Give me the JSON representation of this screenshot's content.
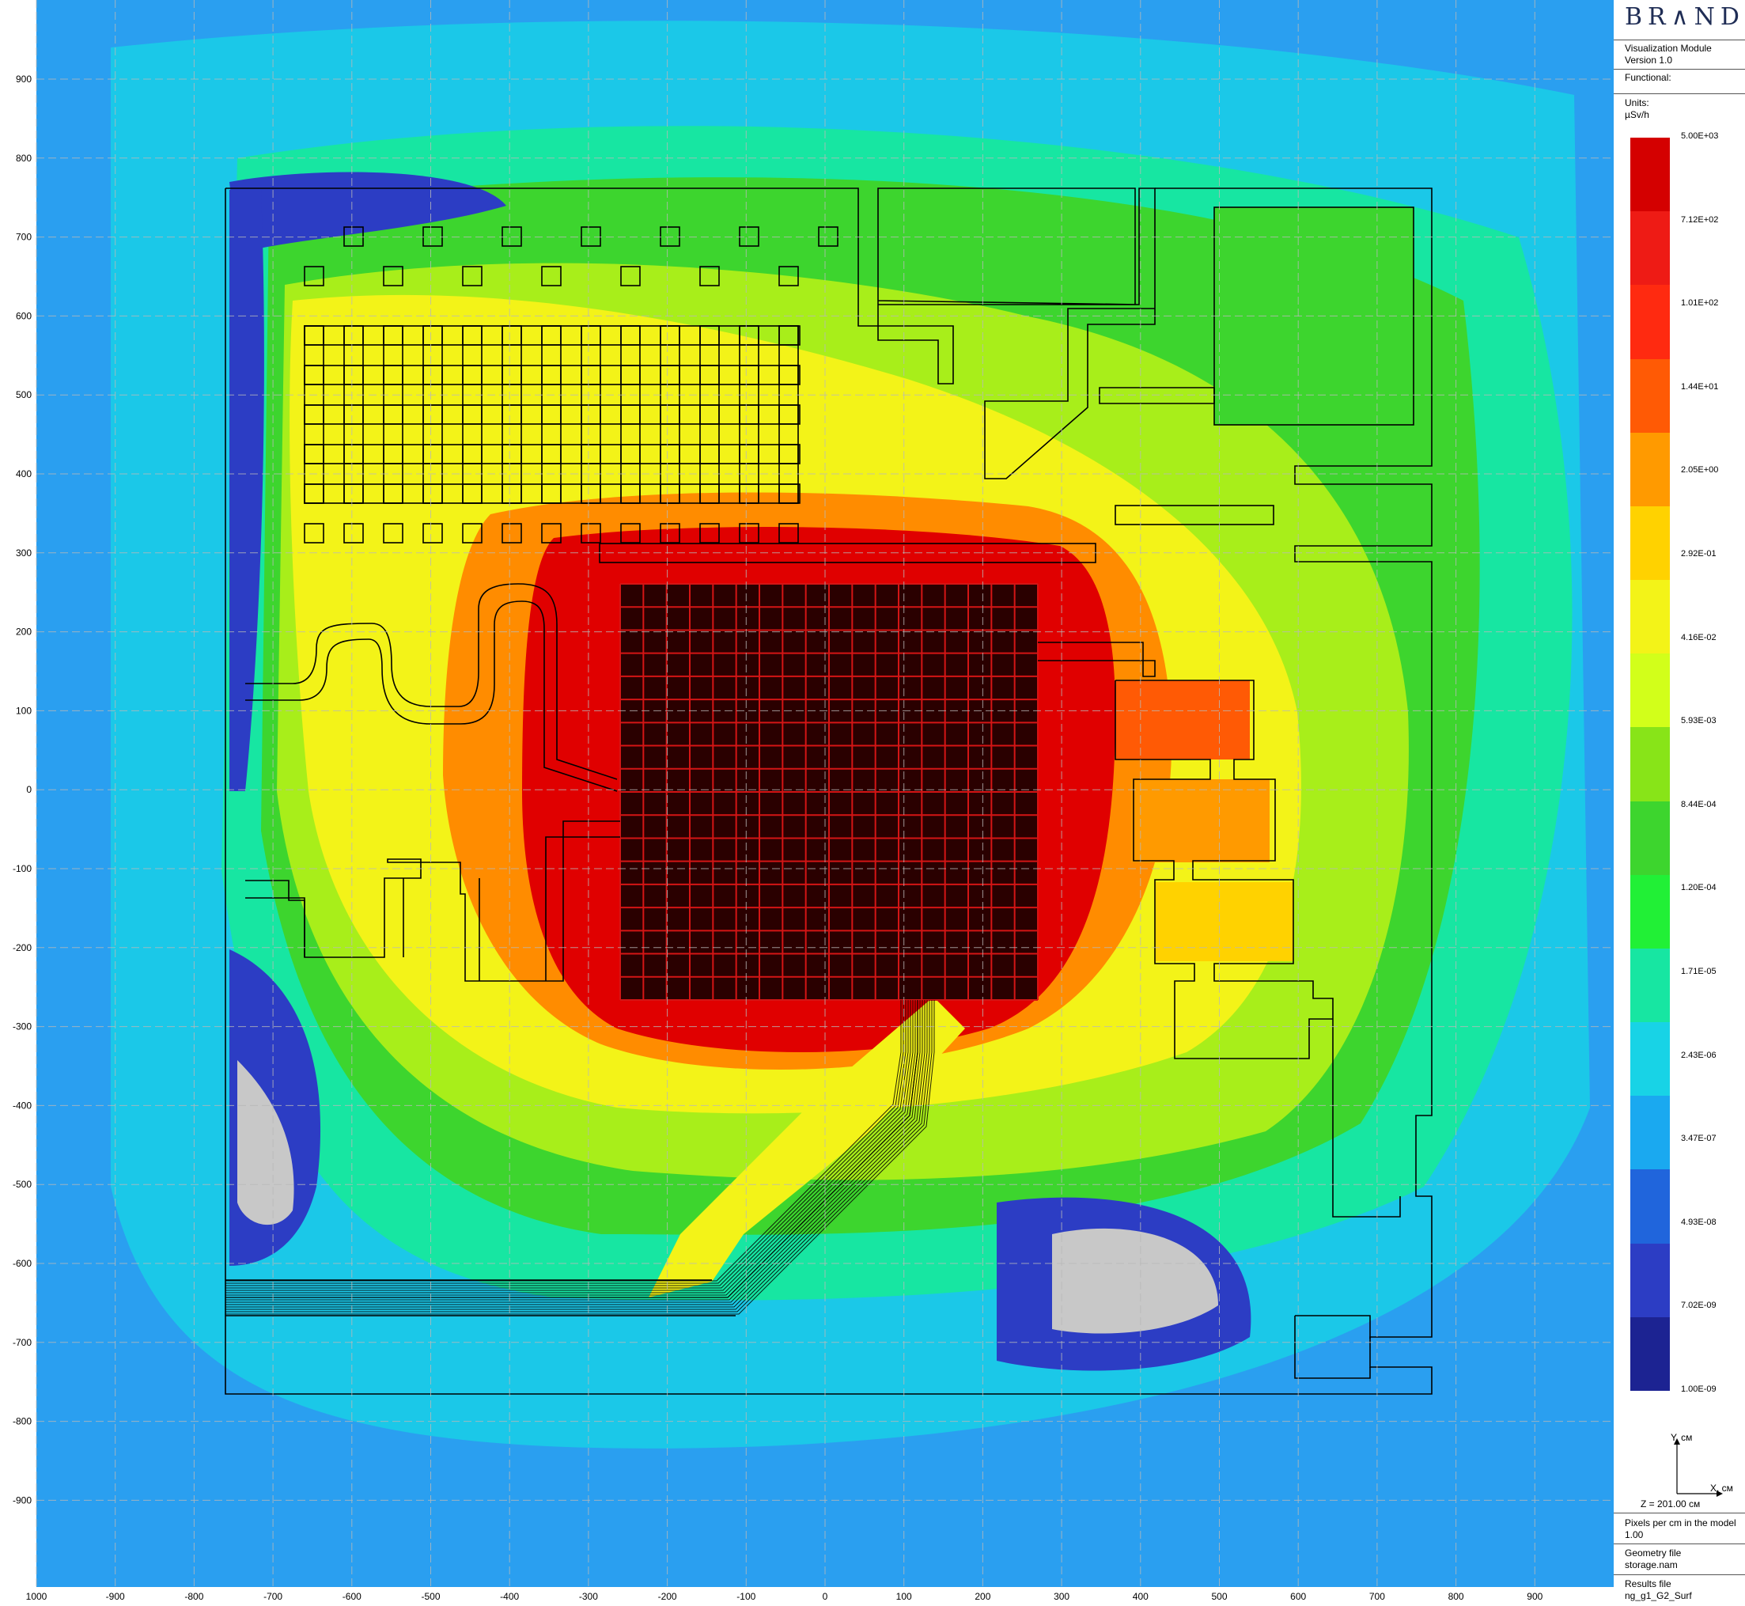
{
  "app": {
    "brand": "BR∧ND",
    "module": "Visualization Module",
    "version": "Version 1.0",
    "functional_label": "Functional:",
    "units_label": "Units:",
    "units_value": "µSv/h",
    "orientation": {
      "y_axis": "Y, cм",
      "x_axis": "X, cм",
      "z_value": "Z = 201.00 cм"
    },
    "pixels_label": "Pixels per cm in the model",
    "pixels_value": "1.00",
    "geometry_label": "Geometry file",
    "geometry_value": "storage.nam",
    "results_label": "Results file",
    "results_value": "ng_g1_G2_Surf"
  },
  "scale": {
    "labels": [
      "5.00E+03",
      "7.12E+02",
      "1.01E+02",
      "1.44E+01",
      "2.05E+00",
      "2.92E-01",
      "4.16E-02",
      "5.93E-03",
      "8.44E-04",
      "1.20E-04",
      "1.71E-05",
      "2.43E-06",
      "3.47E-07",
      "4.93E-08",
      "7.02E-09",
      "1.00E-09"
    ],
    "colors": [
      "#d40000",
      "#ee1b15",
      "#ff2a10",
      "#ff5a05",
      "#ff9a00",
      "#ffd200",
      "#f3f318",
      "#d2ff1a",
      "#88e418",
      "#3dd52e",
      "#21f036",
      "#17e6a2",
      "#18d3e6",
      "#1aa9f0",
      "#2065dc",
      "#2c3dc4",
      "#1c2392"
    ]
  },
  "plot": {
    "x_ticks": [
      "1000",
      "-900",
      "-800",
      "-700",
      "-600",
      "-500",
      "-400",
      "-300",
      "-200",
      "-100",
      "0",
      "100",
      "200",
      "300",
      "400",
      "500",
      "600",
      "700",
      "800",
      "900"
    ],
    "y_ticks": [
      "900",
      "800",
      "700",
      "600",
      "500",
      "400",
      "300",
      "200",
      "100",
      "0",
      "-100",
      "-200",
      "-300",
      "-400",
      "-500",
      "-600",
      "-700",
      "-800",
      "-900"
    ],
    "colors": {
      "background": "#2a9ff0",
      "outer": "#1bc8e8",
      "low": "#17e6a2",
      "green": "#3dd52e",
      "yellow_green": "#a8ee1a",
      "yellow": "#f3f318",
      "orange": "#ff8c00",
      "red": "#e00000",
      "deep_blue": "#2c3dc4",
      "grey": "#c8c8c8",
      "core": "#2a0000",
      "grid": "#b9b9b9"
    }
  }
}
